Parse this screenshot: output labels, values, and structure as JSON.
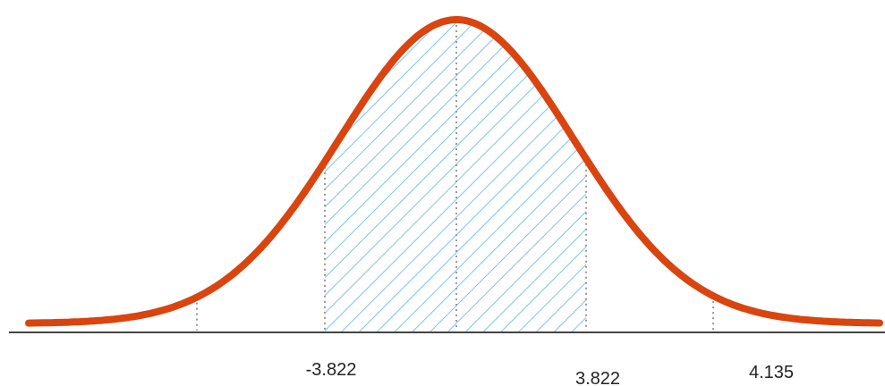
{
  "labels": [
    "-3.822",
    "3.822",
    "4.135"
  ]
}
